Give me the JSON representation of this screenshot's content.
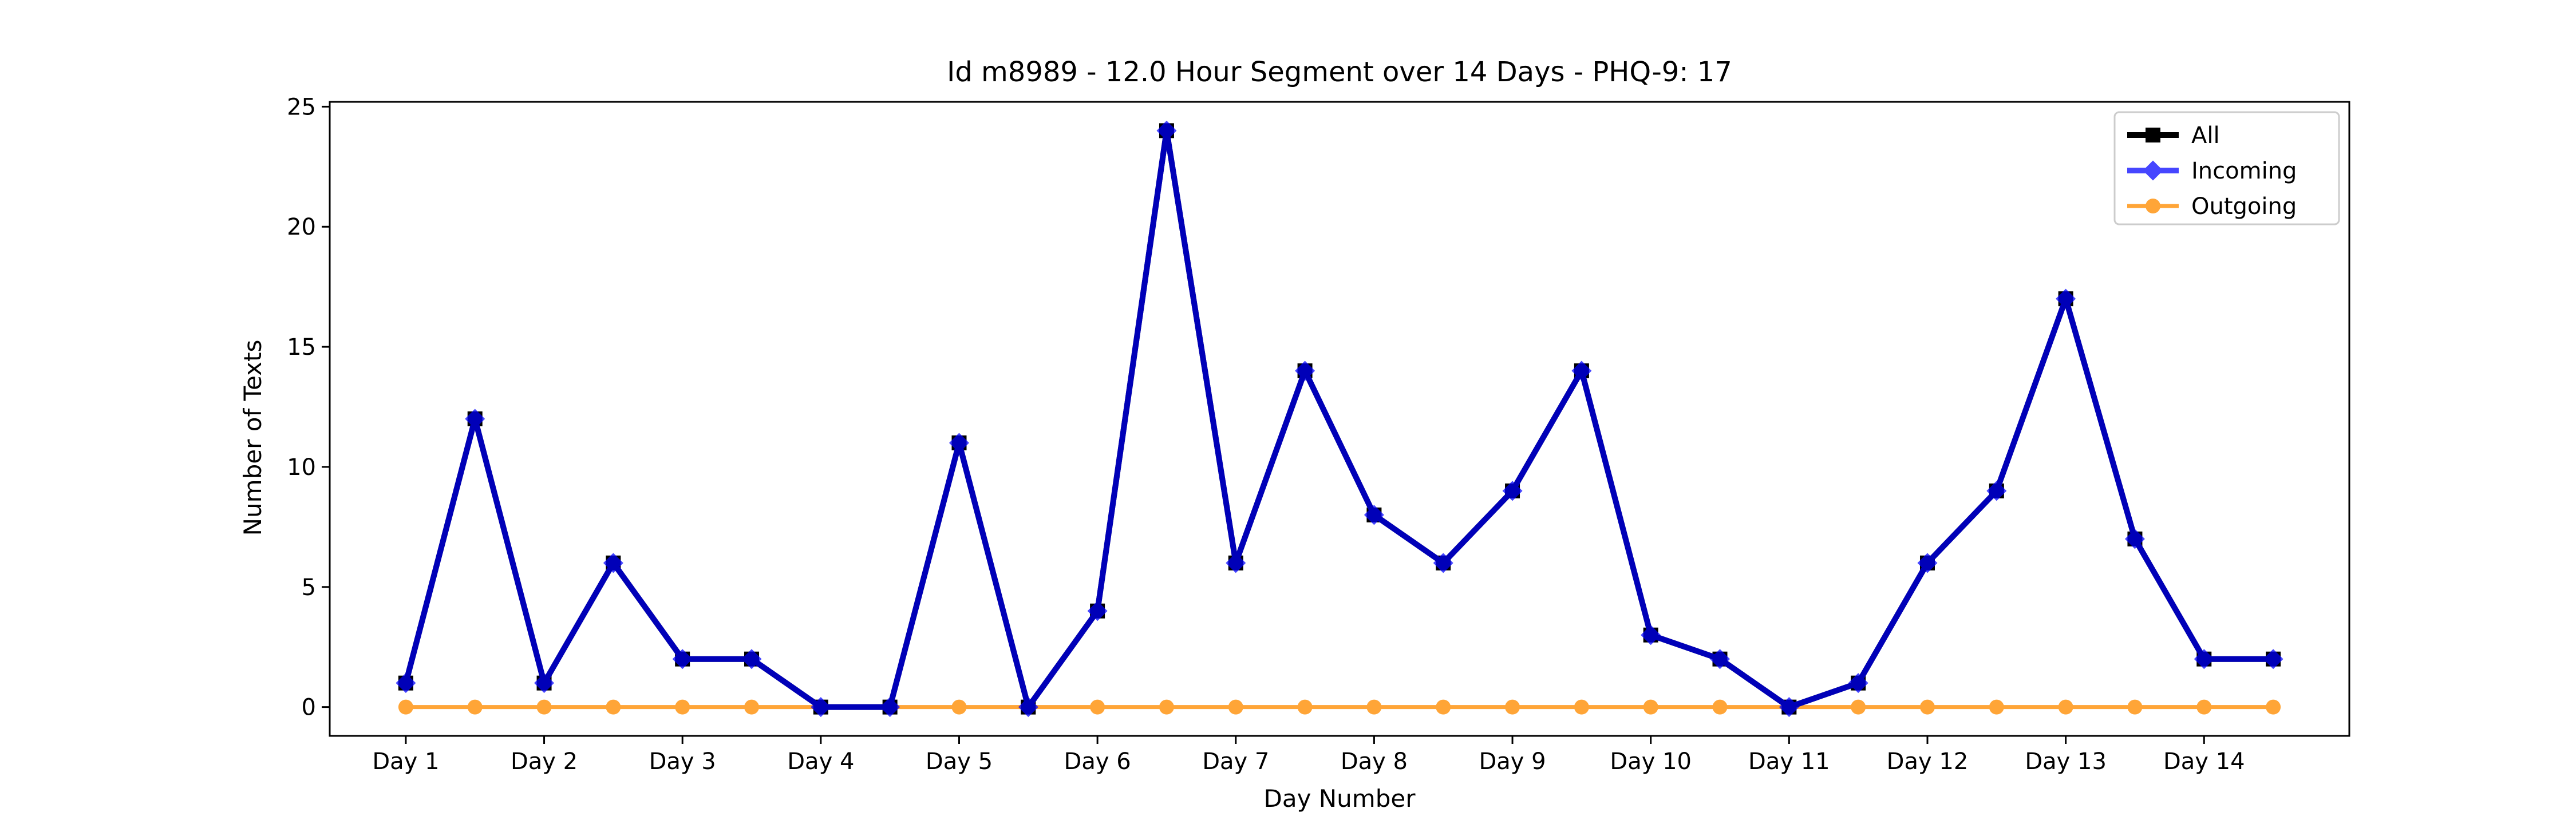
{
  "chart_data": {
    "type": "line",
    "title": "Id m8989 - 12.0 Hour Segment over 14 Days - PHQ-9: 17",
    "xlabel": "Day Number",
    "ylabel": "Number of Texts",
    "categories": [
      "Day 1",
      "Day 2",
      "Day 3",
      "Day 4",
      "Day 5",
      "Day 6",
      "Day 7",
      "Day 8",
      "Day 9",
      "Day 10",
      "Day 11",
      "Day 12",
      "Day 13",
      "Day 14"
    ],
    "x": [
      1,
      1.5,
      2,
      2.5,
      3,
      3.5,
      4,
      4.5,
      5,
      5.5,
      6,
      6.5,
      7,
      7.5,
      8,
      8.5,
      9,
      9.5,
      10,
      10.5,
      11,
      11.5,
      12,
      12.5,
      13,
      13.5,
      14,
      14.5
    ],
    "ylim": [
      -1.2,
      25.2
    ],
    "xlim": [
      0.45,
      15.05
    ],
    "yticks": [
      0,
      5,
      10,
      15,
      20,
      25
    ],
    "grid": false,
    "legend_position": "top-right",
    "series": [
      {
        "name": "All",
        "color": "#000000",
        "marker": "square",
        "values": [
          1,
          12,
          1,
          6,
          2,
          2,
          0,
          0,
          11,
          0,
          4,
          24,
          6,
          14,
          8,
          6,
          9,
          14,
          3,
          2,
          0,
          1,
          6,
          9,
          17,
          7,
          2,
          2
        ]
      },
      {
        "name": "Incoming",
        "color": "#0000ff",
        "marker": "diamond",
        "values": [
          1,
          12,
          1,
          6,
          2,
          2,
          0,
          0,
          11,
          0,
          4,
          24,
          6,
          14,
          8,
          6,
          9,
          14,
          3,
          2,
          0,
          1,
          6,
          9,
          17,
          7,
          2,
          2
        ]
      },
      {
        "name": "Outgoing",
        "color": "#ff8c00",
        "marker": "circle",
        "values": [
          0,
          0,
          0,
          0,
          0,
          0,
          0,
          0,
          0,
          0,
          0,
          0,
          0,
          0,
          0,
          0,
          0,
          0,
          0,
          0,
          0,
          0,
          0,
          0,
          0,
          0,
          0,
          0
        ]
      }
    ]
  }
}
